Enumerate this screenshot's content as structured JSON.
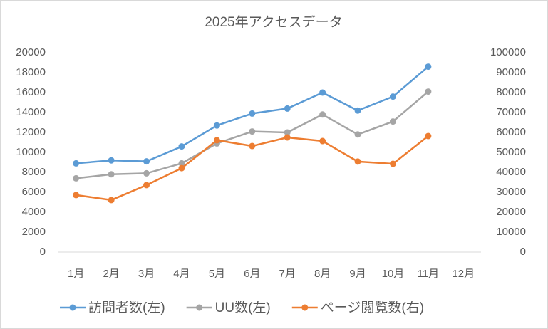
{
  "chart_data": {
    "type": "line",
    "title": "2025年アクセスデータ",
    "categories": [
      "1月",
      "2月",
      "3月",
      "4月",
      "5月",
      "6月",
      "7月",
      "8月",
      "9月",
      "10月",
      "11月",
      "12月"
    ],
    "series": [
      {
        "name": "訪問者数(左)",
        "color": "#5b9bd5",
        "values": [
          8900,
          9200,
          9100,
          10600,
          12700,
          13900,
          14400,
          16000,
          14200,
          15600,
          18600,
          null
        ]
      },
      {
        "name": "UU数(左)",
        "color": "#a5a5a5",
        "values": [
          7400,
          7800,
          7900,
          8900,
          10900,
          12100,
          12000,
          13800,
          11800,
          13100,
          16100,
          null
        ]
      },
      {
        "name": "ページ閲覧数(右)",
        "color": "#ed7d31",
        "axis": "y2",
        "values": [
          28600,
          26100,
          33600,
          42100,
          56100,
          53200,
          57500,
          55700,
          45400,
          44300,
          58200,
          null
        ]
      }
    ],
    "ylim": [
      0,
      20000
    ],
    "yticks": [
      0,
      2000,
      4000,
      6000,
      8000,
      10000,
      12000,
      14000,
      16000,
      18000,
      20000
    ],
    "y2lim": [
      0,
      100000
    ],
    "y2ticks": [
      0,
      10000,
      20000,
      30000,
      40000,
      50000,
      60000,
      70000,
      80000,
      90000,
      100000
    ],
    "grid": false,
    "legend": "bottom"
  }
}
